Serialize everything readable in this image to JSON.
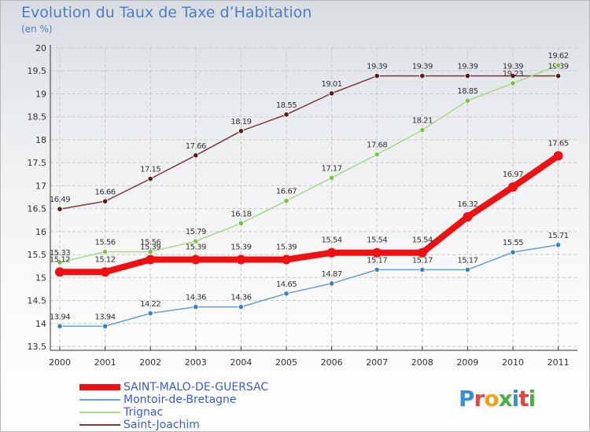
{
  "title": "Evolution du Taux de Taxe d’Habitation",
  "subtitle": "(en %)",
  "logo": {
    "text": "Proxiti",
    "colors": [
      "#3a8fd9",
      "#e8423c",
      "#f0a020",
      "#46b04a",
      "#3a8fd9",
      "#e8423c",
      "#46b04a"
    ]
  },
  "chart_data": {
    "type": "line",
    "x": [
      "2000",
      "2001",
      "2002",
      "2003",
      "2004",
      "2005",
      "2006",
      "2007",
      "2008",
      "2009",
      "2010",
      "2011"
    ],
    "ylim": [
      13.5,
      20
    ],
    "yticks": [
      "13.5",
      "14",
      "14.5",
      "15",
      "15.5",
      "16",
      "16.5",
      "17",
      "17.5",
      "18",
      "18.5",
      "19",
      "19.5",
      "20"
    ],
    "grid": true,
    "legend_position": "bottom-left",
    "series": [
      {
        "name": "Saint-Joachim",
        "color": "#7a3a3a",
        "point_color": "#5a1a1a",
        "values": [
          16.49,
          16.66,
          17.15,
          17.66,
          18.19,
          18.55,
          19.01,
          19.39,
          19.39,
          19.39,
          19.39,
          19.39
        ],
        "labels": [
          "16.49",
          "16.66",
          "17.15",
          "17.66",
          "18.19",
          "18.55",
          "19.01",
          "19.39",
          "19.39",
          "19.39",
          "19.39",
          "19.39"
        ]
      },
      {
        "name": "Trignac",
        "color": "#a8d98a",
        "point_color": "#7cc242",
        "values": [
          15.33,
          15.56,
          15.56,
          15.79,
          16.18,
          16.67,
          17.17,
          17.68,
          18.21,
          18.85,
          19.23,
          19.62
        ],
        "labels": [
          "15.33",
          "15.56",
          "15.56",
          "15.79",
          "16.18",
          "16.67",
          "17.17",
          "17.68",
          "18.21",
          "18.85",
          "19.23",
          "19.62"
        ]
      },
      {
        "name": "Montoir-de-Bretagne",
        "color": "#6a9fd0",
        "point_color": "#3a82c4",
        "values": [
          13.94,
          13.94,
          14.22,
          14.36,
          14.36,
          14.65,
          14.87,
          15.17,
          15.17,
          15.17,
          15.55,
          15.71
        ],
        "labels": [
          "13.94",
          "13.94",
          "14.22",
          "14.36",
          "14.36",
          "14.65",
          "14.87",
          "15.17",
          "15.17",
          "15.17",
          "15.55",
          "15.71"
        ]
      },
      {
        "name": "SAINT-MALO-DE-GUERSAC",
        "color": "#ee1111",
        "point_color": "#ee1111",
        "values": [
          15.12,
          15.12,
          15.39,
          15.39,
          15.39,
          15.39,
          15.54,
          15.54,
          15.54,
          16.32,
          16.97,
          17.65
        ],
        "labels": [
          "15.12",
          "15.12",
          "15.39",
          "15.39",
          "15.39",
          "15.39",
          "15.54",
          "15.54",
          "15.54",
          "16.32",
          "16.97",
          "17.65"
        ]
      }
    ],
    "legend_order": [
      "SAINT-MALO-DE-GUERSAC",
      "Montoir-de-Bretagne",
      "Trignac",
      "Saint-Joachim"
    ]
  }
}
